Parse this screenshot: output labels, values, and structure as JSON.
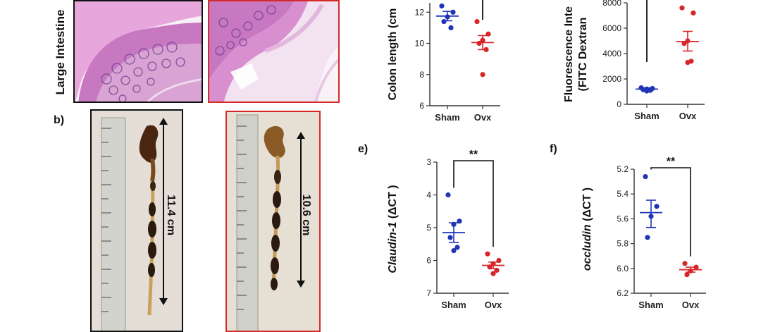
{
  "panel_labels": {
    "b": "b)",
    "e": "e)",
    "f": "f)"
  },
  "histology": {
    "row_label": "Large Intestine"
  },
  "photos": {
    "sham_length": "11.4 cm",
    "ovx_length": "10.6 cm"
  },
  "colors": {
    "sham": "#1f35b5",
    "ovx": "#d7262a",
    "sham_border": "#111111",
    "ovx_border": "#d62a2a",
    "he_stain": "#c86fc0",
    "tissue_dark": "#3d2418"
  },
  "chart_data": [
    {
      "id": "colon_length",
      "type": "scatter",
      "ylabel": "Colon length (cm",
      "categories": [
        "Sham",
        "Ovx"
      ],
      "ylim": [
        6,
        12.6
      ],
      "yticks": [
        "6",
        "8",
        "10",
        "12"
      ],
      "series": [
        {
          "points": [
            12.4,
            12.0,
            11.7,
            11.4,
            11.0
          ],
          "mean": 11.75,
          "sem": [
            11.45,
            12.05
          ]
        },
        {
          "points": [
            11.4,
            10.6,
            10.2,
            10.0,
            9.6,
            8.0
          ],
          "mean": 10.05,
          "sem": [
            9.6,
            10.5
          ]
        }
      ],
      "significance": ""
    },
    {
      "id": "fitc_dextran",
      "type": "scatter",
      "ylabel": "Fluorescence Inte (FITC Dextran",
      "ylabel_line1": "Fluorescence Inte",
      "ylabel_line2": "(FITC Dextran",
      "categories": [
        "Sham",
        "Ovx"
      ],
      "ylim": [
        0,
        8000
      ],
      "yticks": [
        "0",
        "2000",
        "4000",
        "6000",
        "8000"
      ],
      "series": [
        {
          "points": [
            1300,
            1250,
            1200,
            1150,
            1100,
            1050
          ],
          "mean": 1200,
          "sem": [
            1100,
            1300
          ]
        },
        {
          "points": [
            7600,
            7200,
            5000,
            4800,
            3400,
            3300
          ],
          "mean": 4950,
          "sem": [
            4200,
            5750
          ]
        }
      ],
      "significance": ""
    },
    {
      "id": "claudin1",
      "type": "scatter",
      "ylabel": "Claudin-1 (ΔCT )",
      "ylabel_gene": "Claudin-1",
      "ylabel_rest": " (ΔCT )",
      "categories": [
        "Sham",
        "Ovx"
      ],
      "ylim": [
        3,
        7
      ],
      "yaxis_inverted": true,
      "yticks": [
        "3",
        "4",
        "5",
        "6",
        "7"
      ],
      "series": [
        {
          "points": [
            4.0,
            4.8,
            4.9,
            5.3,
            5.6,
            5.7
          ],
          "mean": 5.15,
          "sem": [
            4.85,
            5.45
          ]
        },
        {
          "points": [
            5.8,
            6.0,
            6.1,
            6.2,
            6.3,
            6.4
          ],
          "mean": 6.15,
          "sem": [
            6.05,
            6.25
          ]
        }
      ],
      "significance": "**"
    },
    {
      "id": "occludin",
      "type": "scatter",
      "ylabel": "occludin (ΔCT )",
      "ylabel_gene": "occludin",
      "ylabel_rest": " (ΔCT )",
      "categories": [
        "Sham",
        "Ovx"
      ],
      "ylim": [
        5.2,
        6.2
      ],
      "yaxis_inverted": true,
      "yticks": [
        "5.2",
        "5.4",
        "5.6",
        "5.8",
        "6.0",
        "6.2"
      ],
      "series": [
        {
          "points": [
            5.26,
            5.5,
            5.58,
            5.75
          ],
          "mean": 5.55,
          "sem": [
            5.45,
            5.67
          ]
        },
        {
          "points": [
            5.96,
            5.99,
            6.02,
            6.05
          ],
          "mean": 6.01,
          "sem": [
            5.99,
            6.03
          ]
        }
      ],
      "significance": "**"
    }
  ]
}
